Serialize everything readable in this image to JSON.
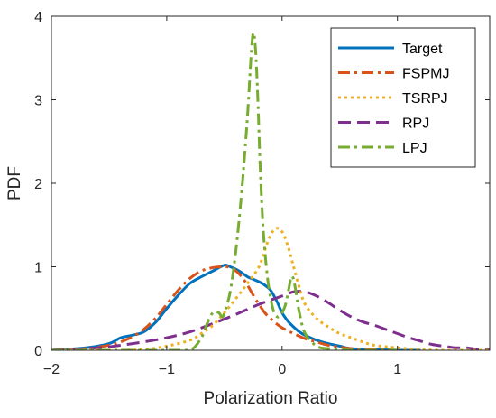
{
  "chart_data": {
    "type": "line",
    "title": "",
    "xlabel": "Polarization Ratio",
    "ylabel": "PDF",
    "xlim": [
      -2,
      1.8
    ],
    "ylim": [
      0,
      4
    ],
    "xticks": [
      -2,
      -1,
      0,
      1
    ],
    "yticks": [
      0,
      1,
      2,
      3,
      4
    ],
    "xtick_labels": [
      "−2",
      "−1",
      "0",
      "1"
    ],
    "ytick_labels": [
      "0",
      "1",
      "2",
      "3",
      "4"
    ],
    "grid": false,
    "legend_position": "top-right",
    "series": [
      {
        "name": "Target",
        "color": "#0072BD",
        "style": "solid",
        "x": [
          -2,
          -1.7,
          -1.5,
          -1.4,
          -1.3,
          -1.2,
          -1.1,
          -1.0,
          -0.9,
          -0.8,
          -0.7,
          -0.6,
          -0.5,
          -0.45,
          -0.4,
          -0.35,
          -0.3,
          -0.25,
          -0.2,
          -0.15,
          -0.1,
          -0.05,
          0.0,
          0.05,
          0.1,
          0.15,
          0.2,
          0.3,
          0.4,
          0.5,
          0.6,
          0.8,
          1.0,
          1.2
        ],
        "y": [
          0,
          0.03,
          0.08,
          0.15,
          0.18,
          0.22,
          0.33,
          0.5,
          0.66,
          0.8,
          0.88,
          0.95,
          1.02,
          1.0,
          0.97,
          0.93,
          0.88,
          0.85,
          0.82,
          0.78,
          0.72,
          0.6,
          0.45,
          0.35,
          0.28,
          0.22,
          0.18,
          0.12,
          0.08,
          0.05,
          0.02,
          0.01,
          0.0,
          0.0
        ]
      },
      {
        "name": "FSPMJ",
        "color": "#D95319",
        "style": "dashdot",
        "x": [
          -2,
          -1.7,
          -1.5,
          -1.4,
          -1.3,
          -1.2,
          -1.1,
          -1.0,
          -0.9,
          -0.8,
          -0.7,
          -0.6,
          -0.5,
          -0.45,
          -0.4,
          -0.35,
          -0.3,
          -0.25,
          -0.2,
          -0.15,
          -0.1,
          -0.05,
          0.0,
          0.1,
          0.2,
          0.3,
          0.4,
          0.5,
          0.6,
          0.8,
          1.0
        ],
        "y": [
          0,
          0.02,
          0.06,
          0.1,
          0.16,
          0.25,
          0.38,
          0.55,
          0.72,
          0.86,
          0.95,
          0.99,
          1.0,
          0.99,
          0.95,
          0.88,
          0.78,
          0.66,
          0.55,
          0.45,
          0.38,
          0.32,
          0.27,
          0.2,
          0.14,
          0.1,
          0.06,
          0.04,
          0.02,
          0.01,
          0.0
        ]
      },
      {
        "name": "TSRPJ",
        "color": "#EDB120",
        "style": "dotted",
        "x": [
          -2,
          -1.5,
          -1.2,
          -1.0,
          -0.8,
          -0.7,
          -0.6,
          -0.5,
          -0.4,
          -0.3,
          -0.2,
          -0.15,
          -0.1,
          -0.05,
          0.0,
          0.05,
          0.1,
          0.15,
          0.2,
          0.3,
          0.4,
          0.5,
          0.6,
          0.7,
          0.8,
          1.0,
          1.2,
          1.4,
          1.8
        ],
        "y": [
          0,
          0.0,
          0.01,
          0.05,
          0.12,
          0.2,
          0.3,
          0.45,
          0.62,
          0.8,
          1.0,
          1.2,
          1.38,
          1.46,
          1.42,
          1.25,
          1.0,
          0.75,
          0.55,
          0.38,
          0.28,
          0.2,
          0.15,
          0.1,
          0.06,
          0.03,
          0.01,
          0.0,
          0.0
        ]
      },
      {
        "name": "RPJ",
        "color": "#7E2F8E",
        "style": "dashed",
        "x": [
          -2,
          -1.6,
          -1.4,
          -1.2,
          -1.0,
          -0.8,
          -0.6,
          -0.4,
          -0.2,
          0.0,
          0.1,
          0.2,
          0.3,
          0.4,
          0.5,
          0.6,
          0.7,
          0.8,
          0.9,
          1.0,
          1.1,
          1.2,
          1.3,
          1.4,
          1.5,
          1.6,
          1.7,
          1.8
        ],
        "y": [
          0,
          0.03,
          0.06,
          0.1,
          0.15,
          0.22,
          0.32,
          0.43,
          0.55,
          0.65,
          0.7,
          0.7,
          0.65,
          0.57,
          0.48,
          0.4,
          0.34,
          0.3,
          0.25,
          0.2,
          0.15,
          0.11,
          0.07,
          0.05,
          0.03,
          0.03,
          0.01,
          0.01
        ]
      },
      {
        "name": "LPJ",
        "color": "#77AC30",
        "style": "dashdot",
        "x": [
          -2,
          -1.0,
          -0.8,
          -0.7,
          -0.65,
          -0.6,
          -0.55,
          -0.52,
          -0.5,
          -0.45,
          -0.4,
          -0.35,
          -0.3,
          -0.27,
          -0.25,
          -0.23,
          -0.21,
          -0.19,
          -0.17,
          -0.15,
          -0.12,
          -0.08,
          -0.04,
          0.0,
          0.03,
          0.06,
          0.08,
          0.1,
          0.12,
          0.15,
          0.2,
          0.3,
          0.4,
          0.6,
          1.0
        ],
        "y": [
          0,
          0.0,
          0.0,
          0.15,
          0.32,
          0.45,
          0.45,
          0.4,
          0.45,
          0.7,
          1.2,
          1.9,
          2.8,
          3.5,
          3.8,
          3.6,
          3.0,
          2.2,
          1.6,
          1.2,
          0.8,
          0.5,
          0.4,
          0.45,
          0.55,
          0.75,
          0.88,
          0.85,
          0.7,
          0.45,
          0.2,
          0.05,
          0.02,
          0.0,
          0.0
        ]
      }
    ]
  }
}
